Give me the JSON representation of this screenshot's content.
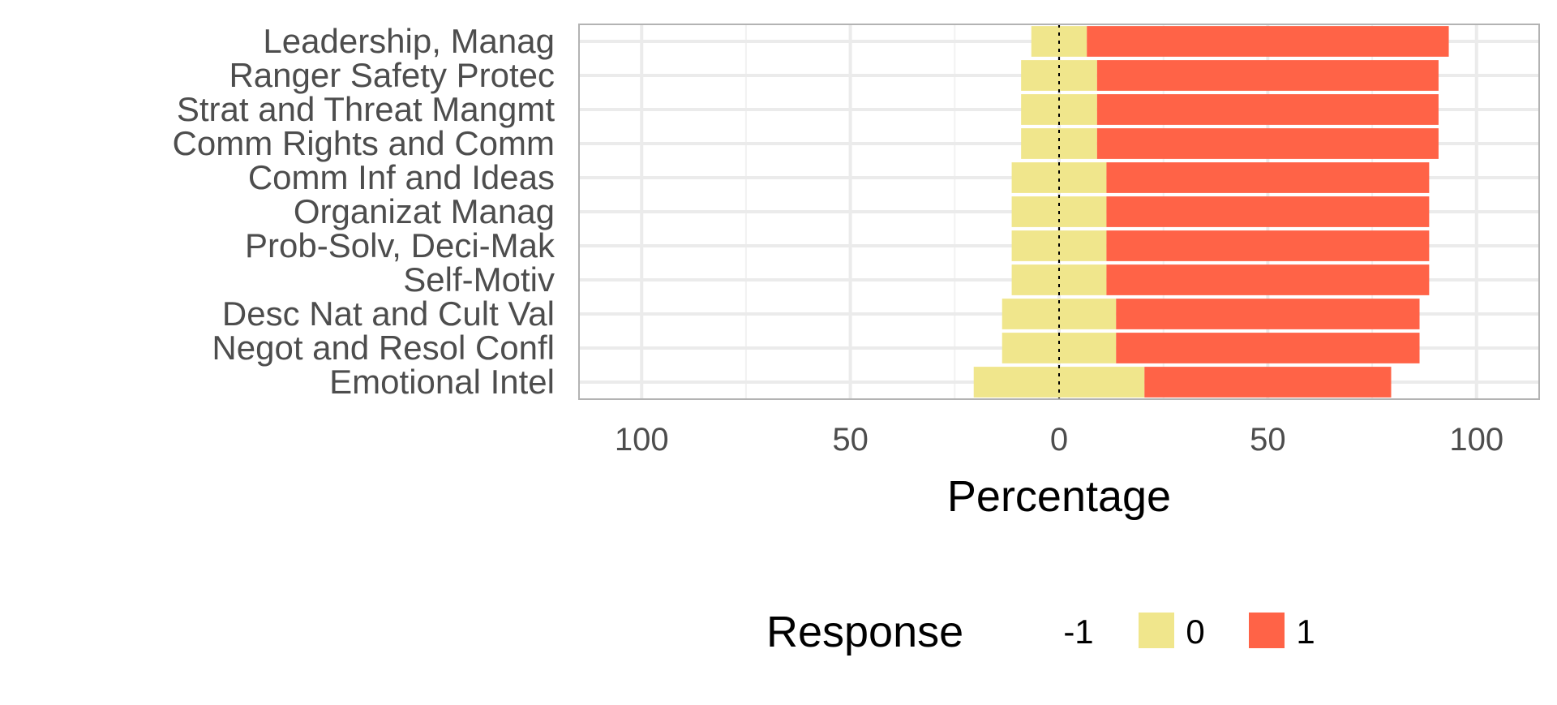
{
  "chart_data": {
    "type": "bar",
    "orientation": "horizontal",
    "stacked": "diverging",
    "categories": [
      "Leadership, Manag",
      "Ranger Safety Protec",
      "Strat and Threat Mangmt",
      "Comm Rights and Comm",
      "Comm Inf and Ideas",
      "Organizat Manag",
      "Prob-Solv, Deci-Mak",
      "Self-Motiv",
      "Desc Nat and Cult Val",
      "Negot and Resol Confl",
      "Emotional Intel"
    ],
    "series": [
      {
        "name": "-1",
        "values": [
          0,
          0,
          0,
          0,
          0,
          0,
          0,
          0,
          0,
          0,
          0
        ]
      },
      {
        "name": "0",
        "values": [
          13.3,
          18.2,
          18.2,
          18.2,
          22.7,
          22.7,
          22.7,
          22.7,
          27.3,
          27.3,
          40.9
        ]
      },
      {
        "name": "1",
        "values": [
          86.7,
          81.8,
          81.8,
          81.8,
          77.3,
          77.3,
          77.3,
          77.3,
          72.7,
          72.7,
          59.1
        ]
      }
    ],
    "colors": {
      "-1": "#1a8a5a",
      "0": "#f0e68c",
      "1": "#ff6347"
    },
    "xlabel": "Percentage",
    "ylabel": "",
    "xlim": [
      -115,
      115
    ],
    "x_ticks": [
      -100,
      -50,
      0,
      50,
      100
    ],
    "x_tick_labels": [
      "100",
      "50",
      "0",
      "50",
      "100"
    ],
    "grid": true,
    "legend": {
      "title": "Response",
      "position": "bottom",
      "entries": [
        "-1",
        "0",
        "1"
      ]
    }
  }
}
